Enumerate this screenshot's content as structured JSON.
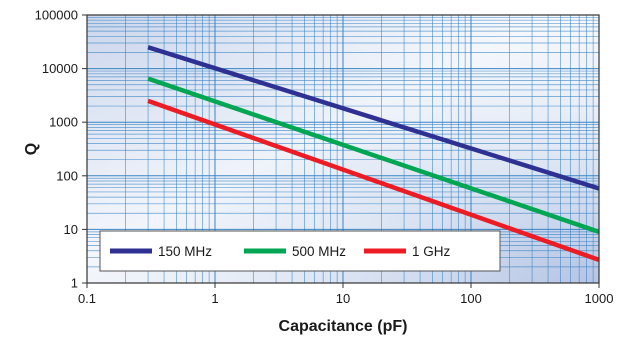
{
  "chart_data": {
    "type": "line",
    "title": "",
    "xlabel": "Capacitance (pF)",
    "ylabel": "Q",
    "x_scale": "log",
    "y_scale": "log",
    "xlim": [
      0.1,
      1000
    ],
    "ylim": [
      1,
      100000
    ],
    "x_ticks": [
      "0.1",
      "1",
      "10",
      "100",
      "1000"
    ],
    "y_ticks": [
      "1",
      "10",
      "100",
      "1000",
      "10000",
      "100000"
    ],
    "grid": true,
    "legend_position": "bottom-left",
    "series": [
      {
        "name": "150 MHz",
        "color": "#2e3192",
        "x": [
          0.3,
          1000
        ],
        "y": [
          25000,
          58
        ]
      },
      {
        "name": "500 MHz",
        "color": "#00a651",
        "x": [
          0.3,
          1000
        ],
        "y": [
          6500,
          9
        ]
      },
      {
        "name": "1 GHz",
        "color": "#ed1c24",
        "x": [
          0.3,
          1000
        ],
        "y": [
          2500,
          2.7
        ]
      }
    ]
  }
}
